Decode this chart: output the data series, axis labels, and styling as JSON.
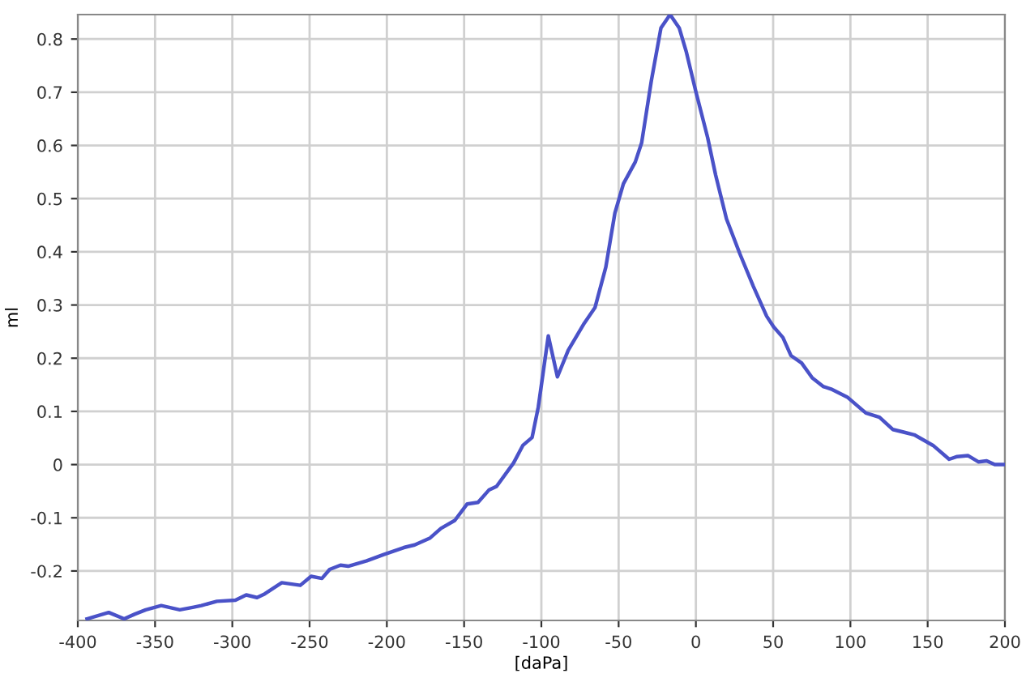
{
  "chart_data": {
    "type": "line",
    "xlabel": "[daPa]",
    "ylabel": "ml",
    "xlim": [
      -400,
      200
    ],
    "ylim": [
      -0.293,
      0.846
    ],
    "xticks": [
      -400,
      -350,
      -300,
      -250,
      -200,
      -150,
      -100,
      -50,
      0,
      50,
      100,
      150,
      200
    ],
    "yticks": [
      -0.2,
      -0.1,
      0,
      0.1,
      0.2,
      0.3,
      0.4,
      0.5,
      0.6,
      0.7,
      0.8
    ],
    "grid": true,
    "marker": "none",
    "line_style": "solid",
    "series": [
      {
        "color": "#4a52c8",
        "x": [
          -394,
          -380,
          -370,
          -363,
          -356,
          -346,
          -334,
          -325,
          -320,
          -310,
          -298,
          -291,
          -284,
          -279,
          -268,
          -256,
          -249,
          -242,
          -237,
          -230,
          -225,
          -213,
          -202,
          -189,
          -182,
          -172,
          -165,
          -156,
          -148,
          -141,
          -134,
          -129,
          -118,
          -112,
          -106,
          -102,
          -95.5,
          -89.6,
          -82.6,
          -72.2,
          -65.3,
          -58.3,
          -52.4,
          -46.9,
          -39.2,
          -35.1,
          -28.8,
          -22.6,
          -16.7,
          -10.8,
          -6.3,
          0,
          7.6,
          12.8,
          19.8,
          28.5,
          37.2,
          45.8,
          50.3,
          56.3,
          61.5,
          68.4,
          75.3,
          82.3,
          87.5,
          97.9,
          110,
          118.8,
          127.4,
          134.4,
          141.3,
          153.5,
          163.9,
          169.1,
          176,
          183,
          188.2,
          193.4,
          200
        ],
        "values": [
          -0.29,
          -0.278,
          -0.29,
          -0.281,
          -0.273,
          -0.265,
          -0.273,
          -0.268,
          -0.265,
          -0.257,
          -0.255,
          -0.245,
          -0.25,
          -0.243,
          -0.222,
          -0.227,
          -0.21,
          -0.214,
          -0.197,
          -0.189,
          -0.191,
          -0.181,
          -0.169,
          -0.156,
          -0.151,
          -0.138,
          -0.12,
          -0.105,
          -0.074,
          -0.071,
          -0.048,
          -0.041,
          0.003,
          0.036,
          0.051,
          0.108,
          0.242,
          0.165,
          0.215,
          0.266,
          0.295,
          0.371,
          0.473,
          0.528,
          0.569,
          0.605,
          0.722,
          0.821,
          0.846,
          0.821,
          0.777,
          0.701,
          0.615,
          0.544,
          0.462,
          0.396,
          0.335,
          0.279,
          0.259,
          0.239,
          0.205,
          0.191,
          0.163,
          0.147,
          0.142,
          0.127,
          0.097,
          0.089,
          0.066,
          0.061,
          0.056,
          0.036,
          0.01,
          0.015,
          0.017,
          0.005,
          0.007,
          0,
          0
        ]
      }
    ]
  }
}
